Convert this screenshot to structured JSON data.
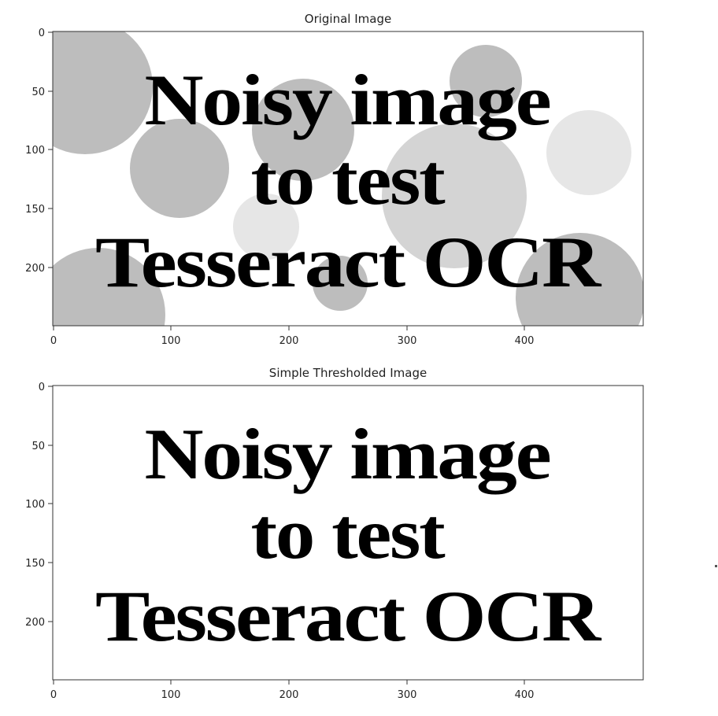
{
  "panels": [
    {
      "title": "Original Image",
      "x_ticks": [
        "0",
        "100",
        "200",
        "300",
        "400"
      ],
      "y_ticks": [
        "0",
        "50",
        "100",
        "150",
        "200"
      ],
      "image_text": [
        "Noisy image",
        "to test",
        "Tesseract OCR"
      ],
      "background": "#ffffff",
      "circle_colors": [
        "#bdbdbd",
        "#d4d4d4",
        "#e6e6e6"
      ],
      "has_noise_circles": true
    },
    {
      "title": "Simple Thresholded Image",
      "x_ticks": [
        "0",
        "100",
        "200",
        "300",
        "400"
      ],
      "y_ticks": [
        "0",
        "50",
        "100",
        "150",
        "200"
      ],
      "image_text": [
        "Noisy image",
        "to test",
        "Tesseract OCR"
      ],
      "background": "#ffffff",
      "has_noise_circles": false
    }
  ],
  "text_color": "#000000"
}
